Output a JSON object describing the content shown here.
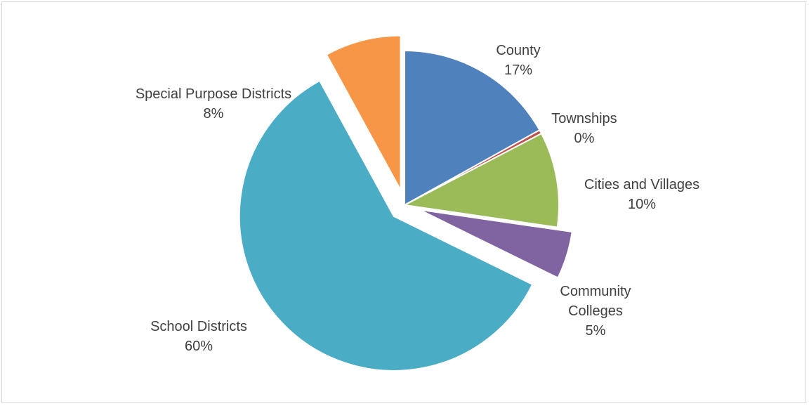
{
  "chart_data": {
    "type": "pie",
    "title": "",
    "slices": [
      {
        "name": "County",
        "value": 17,
        "label": "17%",
        "color": "#4f81bd",
        "exploded": false
      },
      {
        "name": "Townships",
        "value": 0.4,
        "label": "0%",
        "color": "#c0504d",
        "exploded": false
      },
      {
        "name": "Cities and Villages",
        "value": 10,
        "label": "10%",
        "color": "#9bbb59",
        "exploded": false
      },
      {
        "name": "Community Colleges",
        "value": 5,
        "label": "5%",
        "color": "#8064a2",
        "exploded": true
      },
      {
        "name": "School Districts",
        "value": 60,
        "label": "60%",
        "color": "#4bacc6",
        "exploded": true
      },
      {
        "name": "Special Purpose Districts",
        "value": 8,
        "label": "8%",
        "color": "#f79646",
        "exploded": true
      }
    ],
    "start_angle_deg": 0,
    "direction": "clockwise",
    "legend": "none",
    "data_labels": "outside-name-and-percent"
  }
}
